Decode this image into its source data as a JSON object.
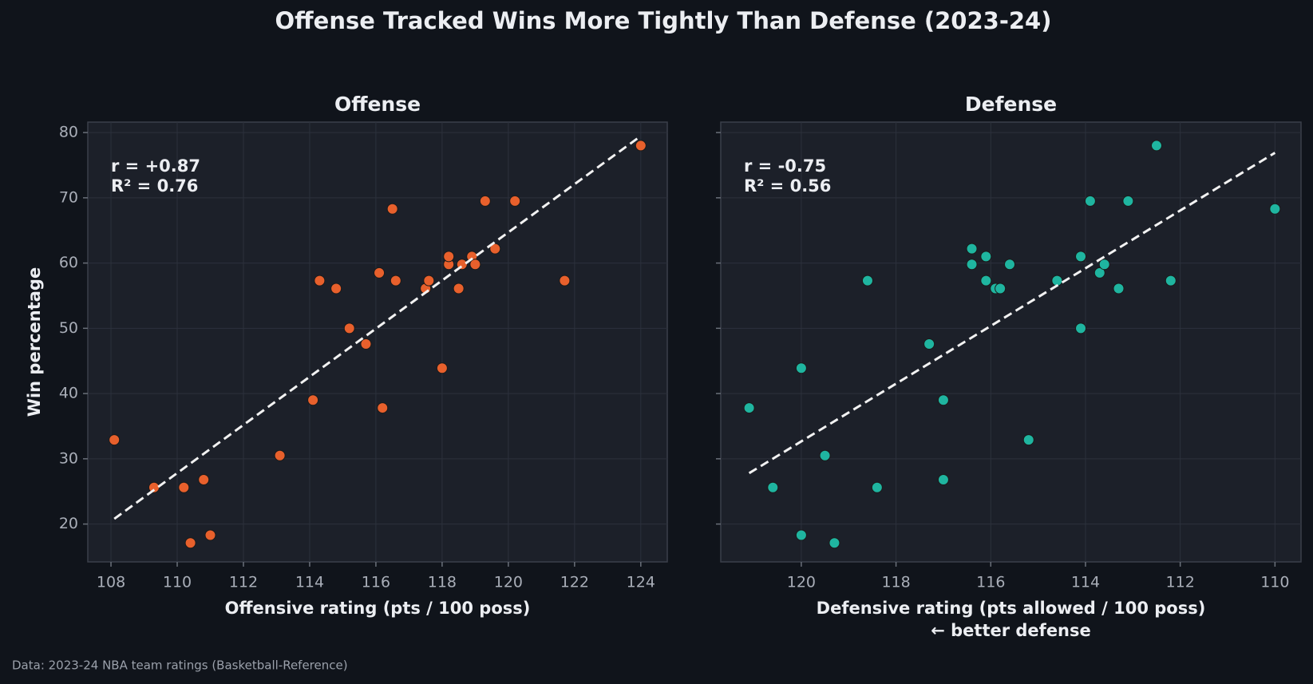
{
  "title": "Offense Tracked Wins More Tightly Than Defense (2023-24)",
  "footer": "Data: 2023-24 NBA team ratings (Basketball-Reference)",
  "chart_data": [
    {
      "type": "scatter",
      "title": "Offense",
      "xlabel": [
        "Offensive rating (pts / 100 poss)"
      ],
      "ylabel": "Win percentage",
      "color": "#e8602c",
      "grid": true,
      "x": [
        108.1,
        109.3,
        110.2,
        110.8,
        110.4,
        111.0,
        113.1,
        114.1,
        114.3,
        114.8,
        115.2,
        115.7,
        116.1,
        116.2,
        116.5,
        116.6,
        117.5,
        117.6,
        118.0,
        118.2,
        118.2,
        118.5,
        118.6,
        118.9,
        119.0,
        119.3,
        119.6,
        120.2,
        121.7,
        124.0
      ],
      "values": [
        32.9,
        25.6,
        25.6,
        26.8,
        17.1,
        18.3,
        30.5,
        39.0,
        57.3,
        56.1,
        50.0,
        47.6,
        58.5,
        37.8,
        68.3,
        57.3,
        56.1,
        57.3,
        43.9,
        59.8,
        61.0,
        56.1,
        59.8,
        61.0,
        59.8,
        69.5,
        62.2,
        69.5,
        57.3,
        78.0
      ],
      "xlim": [
        107.3,
        124.8
      ],
      "ylim": [
        14.2,
        81.6
      ],
      "xticks": [
        108,
        110,
        112,
        114,
        116,
        118,
        120,
        122,
        124
      ],
      "yticks": [
        20,
        30,
        40,
        50,
        60,
        70,
        80
      ],
      "trendline": {
        "x": [
          108.1,
          123.9
        ],
        "y": [
          20.8,
          79.1
        ]
      },
      "annotations": [
        "r = +0.87",
        "R² = 0.76"
      ]
    },
    {
      "type": "scatter",
      "title": "Defense",
      "xlabel": [
        "Defensive rating (pts allowed / 100 poss)",
        "← better defense"
      ],
      "color": "#1fb5a0",
      "grid": true,
      "sharey": true,
      "x": [
        121.1,
        120.6,
        120.0,
        120.0,
        119.5,
        119.3,
        118.6,
        118.4,
        117.3,
        117.0,
        117.0,
        116.4,
        116.4,
        116.1,
        116.1,
        115.9,
        115.8,
        115.6,
        115.2,
        114.6,
        114.1,
        114.1,
        113.9,
        113.7,
        113.6,
        113.3,
        113.1,
        112.5,
        112.2,
        110.0
      ],
      "values": [
        37.8,
        25.6,
        43.9,
        18.3,
        30.5,
        17.1,
        57.3,
        25.6,
        47.6,
        39.0,
        26.8,
        62.2,
        59.8,
        61.0,
        57.3,
        56.1,
        56.1,
        59.8,
        32.9,
        57.3,
        50.0,
        61.0,
        69.5,
        58.5,
        59.8,
        56.1,
        69.5,
        78.0,
        57.3,
        68.3
      ],
      "xlim": [
        121.7,
        109.45
      ],
      "xticks": [
        120,
        118,
        116,
        114,
        112,
        110
      ],
      "trendline": {
        "x": [
          121.1,
          110.0
        ],
        "y": [
          27.8,
          76.9
        ]
      },
      "annotations": [
        "r = -0.75",
        "R² = 0.56"
      ]
    }
  ]
}
